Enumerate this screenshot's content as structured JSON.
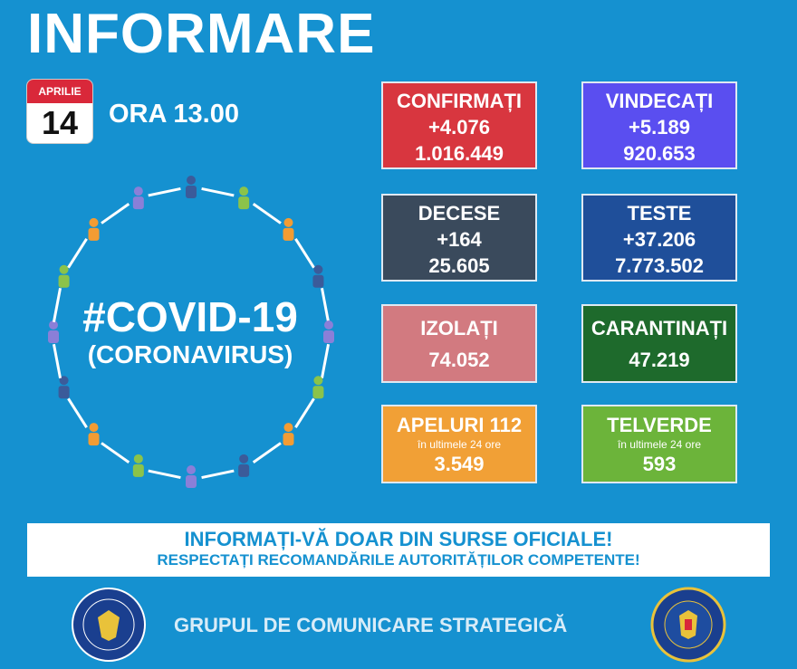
{
  "title": "INFORMARE",
  "date": {
    "month": "APRILIE",
    "day": "14"
  },
  "time": "ORA 13.00",
  "covid": {
    "hashtag": "#COVID-19",
    "subtitle": "(CORONAVIRUS)"
  },
  "stats": [
    {
      "label": "CONFIRMAȚI",
      "delta": "+4.076",
      "total": "1.016.449",
      "color": "#d8363f"
    },
    {
      "label": "VINDECAȚI",
      "delta": "+5.189",
      "total": "920.653",
      "color": "#5a4ef0"
    },
    {
      "label": "DECESE",
      "delta": "+164",
      "total": "25.605",
      "color": "#3a4a5c"
    },
    {
      "label": "TESTE",
      "delta": "+37.206",
      "total": "7.773.502",
      "color": "#1f4f9a"
    },
    {
      "label": "IZOLAȚI",
      "total": "74.052",
      "color": "#d27a80"
    },
    {
      "label": "CARANTINAȚI",
      "total": "47.219",
      "color": "#1e6a2c"
    },
    {
      "label": "APELURI 112",
      "note": "în ultimele 24 ore",
      "total": "3.549",
      "color": "#f1a036"
    },
    {
      "label": "TELVERDE",
      "note": "în ultimele 24 ore",
      "total": "593",
      "color": "#6cb43a"
    }
  ],
  "banner": {
    "line1": "INFORMAȚI-VĂ DOAR DIN SURSE OFICIALE!",
    "line2": "RESPECTAȚI RECOMANDĂRILE AUTORITĂȚILOR COMPETENTE!"
  },
  "footer": "GRUPUL DE COMUNICARE STRATEGICĂ",
  "logos": {
    "left": "GUVERNUL ROMÂNIEI",
    "right": "DEPARTAMENTUL PENTRU SITUAȚII DE URGENȚĂ M.A.I."
  }
}
